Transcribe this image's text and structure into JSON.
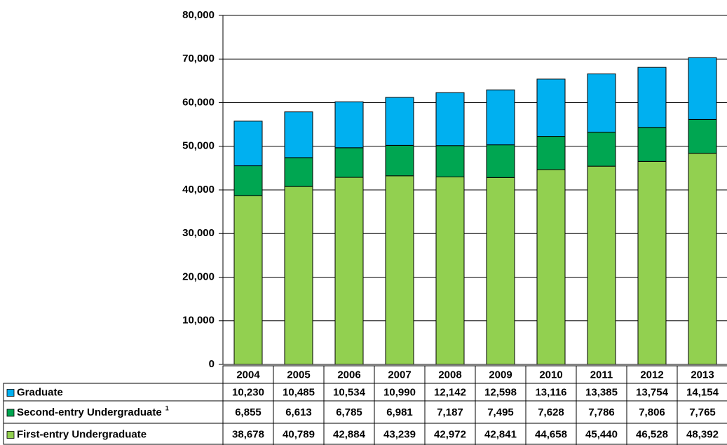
{
  "chart_data": {
    "type": "stacked-bar",
    "categories": [
      "2004",
      "2005",
      "2006",
      "2007",
      "2008",
      "2009",
      "2010",
      "2011",
      "2012",
      "2013"
    ],
    "series": [
      {
        "name": "Graduate",
        "color": "#00b0f0",
        "values": [
          10230,
          10485,
          10534,
          10990,
          12142,
          12598,
          13116,
          13385,
          13754,
          14154
        ],
        "value_labels": [
          "10,230",
          "10,485",
          "10,534",
          "10,990",
          "12,142",
          "12,598",
          "13,116",
          "13,385",
          "13,754",
          "14,154"
        ]
      },
      {
        "name": "Second-entry Undergraduate",
        "note": "1",
        "color": "#00a651",
        "values": [
          6855,
          6613,
          6785,
          6981,
          7187,
          7495,
          7628,
          7786,
          7806,
          7765
        ],
        "value_labels": [
          "6,855",
          "6,613",
          "6,785",
          "6,981",
          "7,187",
          "7,495",
          "7,628",
          "7,786",
          "7,806",
          "7,765"
        ]
      },
      {
        "name": "First-entry Undergraduate",
        "color": "#92d050",
        "values": [
          38678,
          40789,
          42884,
          43239,
          42972,
          42841,
          44658,
          45440,
          46528,
          48392
        ],
        "value_labels": [
          "38,678",
          "40,789",
          "42,884",
          "43,239",
          "42,972",
          "42,841",
          "44,658",
          "45,440",
          "46,528",
          "48,392"
        ]
      }
    ],
    "ylim": [
      0,
      80000
    ],
    "yticks": [
      0,
      {
        "value": 10000,
        "label": "10,000"
      },
      {
        "value": 20000,
        "label": "20,000"
      },
      {
        "value": 30000,
        "label": "30,000"
      },
      {
        "value": 40000,
        "label": "40,000"
      },
      {
        "value": 50000,
        "label": "50,000"
      },
      {
        "value": 60000,
        "label": "60,000"
      },
      {
        "value": 70000,
        "label": "70,000"
      },
      {
        "value": 80000,
        "label": "80,000"
      }
    ],
    "grid": true
  }
}
